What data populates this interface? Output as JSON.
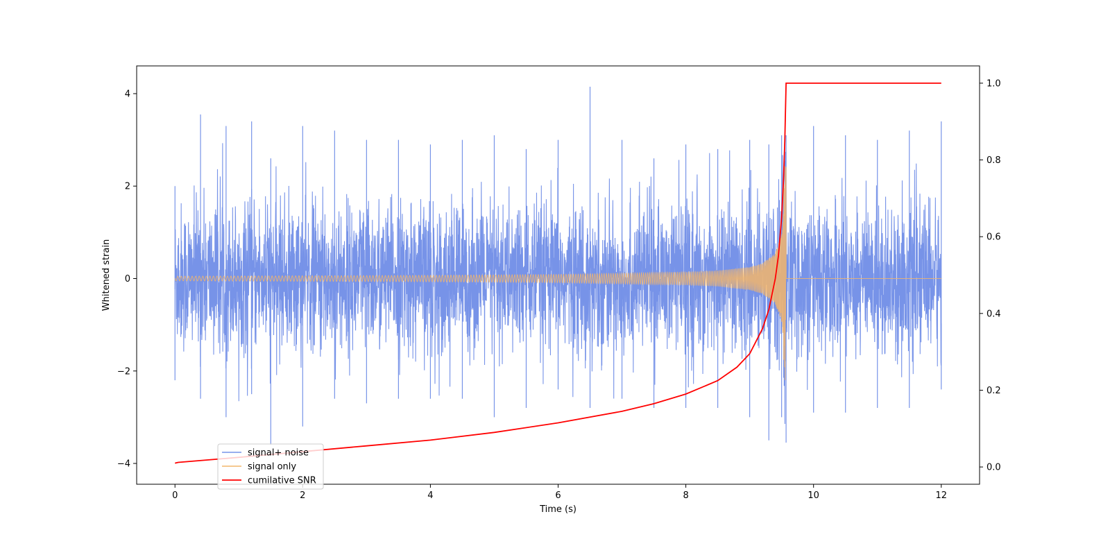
{
  "chart_data": {
    "type": "line",
    "title": "",
    "xlabel": "Time (s)",
    "ylabel": "Whitened strain",
    "y2label": "",
    "xlim": [
      -0.6,
      12.6
    ],
    "ylim": [
      -4.45,
      4.6
    ],
    "y2lim": [
      -0.045,
      1.045
    ],
    "xticks": [
      0,
      2,
      4,
      6,
      8,
      10,
      12
    ],
    "yticks": [
      -4,
      -2,
      0,
      2,
      4
    ],
    "y2ticks": [
      0.0,
      0.2,
      0.4,
      0.6,
      0.8,
      1.0
    ],
    "xtick_labels": [
      "0",
      "2",
      "4",
      "6",
      "8",
      "10",
      "12"
    ],
    "ytick_labels": [
      "−4",
      "−2",
      "0",
      "2",
      "4"
    ],
    "y2tick_labels": [
      "0.0",
      "0.2",
      "0.4",
      "0.6",
      "0.8",
      "1.0"
    ],
    "grid": false,
    "legend_position": "lower-left",
    "merger_time": 9.57,
    "series": [
      {
        "name": "signal+ noise",
        "color": "#7793e8",
        "axis": "left",
        "description_values": {
          "x": [
            0,
            0.4,
            0.8,
            1.2,
            1.5,
            2.0,
            2.5,
            3.0,
            3.5,
            4.0,
            4.5,
            5.0,
            5.5,
            6.0,
            6.5,
            7.0,
            7.5,
            8.0,
            8.5,
            9.0,
            9.3,
            9.5,
            9.57,
            10.0,
            10.5,
            11.0,
            11.5,
            12.0
          ],
          "upper": [
            2.0,
            3.55,
            3.3,
            3.4,
            2.6,
            3.3,
            3.2,
            3.0,
            3.0,
            2.9,
            3.0,
            3.1,
            2.8,
            3.0,
            4.15,
            3.0,
            2.6,
            2.9,
            2.8,
            3.0,
            2.9,
            3.1,
            3.1,
            3.3,
            3.1,
            3.0,
            3.2,
            3.4
          ],
          "lower": [
            -2.2,
            -2.6,
            -3.0,
            -2.5,
            -3.6,
            -3.2,
            -2.6,
            -2.7,
            -2.6,
            -2.6,
            -2.6,
            -3.0,
            -2.8,
            -2.4,
            -2.8,
            -2.6,
            -2.8,
            -2.8,
            -2.8,
            -3.0,
            -3.5,
            -3.0,
            -3.55,
            -2.9,
            -2.9,
            -2.8,
            -2.8,
            -2.4
          ]
        }
      },
      {
        "name": "signal only",
        "color": "#f2b56b",
        "axis": "left",
        "description_values": {
          "x": [
            0,
            2,
            4,
            6,
            8,
            8.5,
            9.0,
            9.2,
            9.4,
            9.5,
            9.57,
            9.58,
            12.0
          ],
          "amplitude": [
            0.05,
            0.06,
            0.07,
            0.09,
            0.14,
            0.17,
            0.25,
            0.33,
            0.55,
            0.95,
            2.9,
            0.0,
            0.0
          ]
        }
      },
      {
        "name": "cumilative SNR",
        "color": "#ff0000",
        "axis": "right",
        "x": [
          0,
          0.05,
          1,
          2,
          3,
          4,
          5,
          6,
          7,
          7.5,
          8,
          8.5,
          8.8,
          9.0,
          9.2,
          9.3,
          9.4,
          9.45,
          9.5,
          9.53,
          9.55,
          9.57,
          10,
          11,
          12
        ],
        "values": [
          0.01,
          0.012,
          0.025,
          0.04,
          0.055,
          0.07,
          0.09,
          0.115,
          0.145,
          0.165,
          0.19,
          0.225,
          0.26,
          0.295,
          0.36,
          0.41,
          0.49,
          0.55,
          0.65,
          0.75,
          0.85,
          1.0,
          1.0,
          1.0,
          1.0
        ]
      }
    ]
  }
}
